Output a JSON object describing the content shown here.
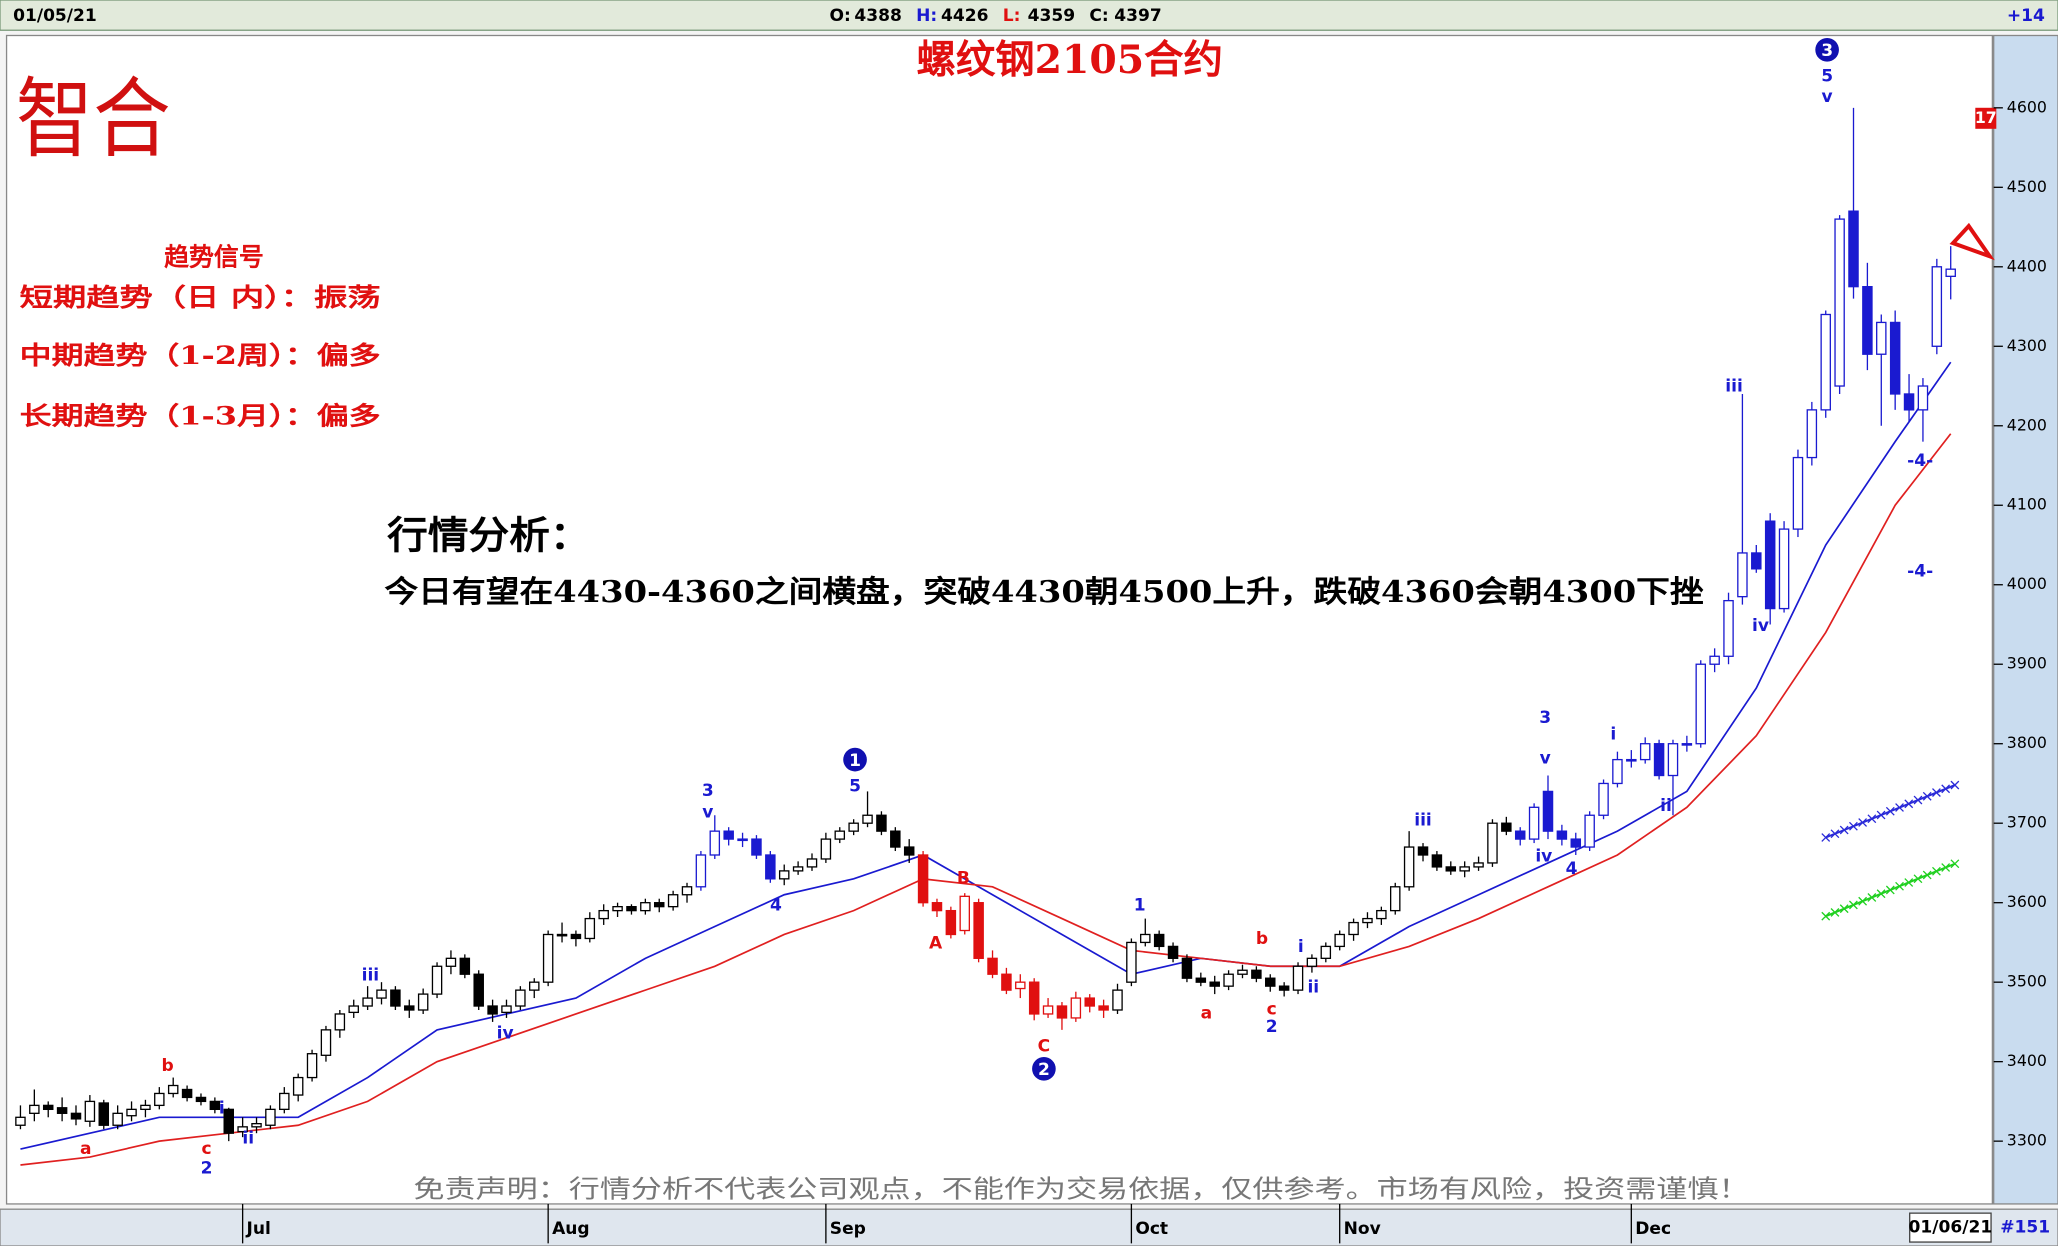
{
  "header": {
    "date": "01/05/21",
    "ohlc": [
      {
        "label": "O:",
        "value": 4388
      },
      {
        "label": "H:",
        "value": 4426
      },
      {
        "label": "L:",
        "value": 4359
      },
      {
        "label": "C:",
        "value": 4397
      }
    ],
    "change": "+14"
  },
  "logo": "智合",
  "trend_signals": {
    "title": "趋势信号",
    "items": [
      "短期趋势（日 内）：振荡",
      "中期趋势（1-2周）：偏多",
      "长期趋势（1-3月）：偏多"
    ]
  },
  "analysis": {
    "title": "行情分析：",
    "text": "今日有望在4430-4360之间横盘，突破4430朝4500上升，跌破4360会朝4300下挫"
  },
  "disclaimer": "免责声明：行情分析不代表公司观点，不能作为交易依据，仅供参考。市场有风险，投资需谨慎！",
  "footer": {
    "date": "01/06/21",
    "count": "#151"
  },
  "chart_data": {
    "type": "candlestick",
    "title": "螺纹钢2105合约",
    "color": "#000000",
    "highlights": [
      {
        "from": 49,
        "to": 54,
        "color": "#1a1ad0"
      },
      {
        "from": 65,
        "to": 78,
        "color": "#e01010"
      },
      {
        "from": 108,
        "to": 139,
        "color": "#1a1ad0"
      }
    ],
    "ohlc": [
      [
        3320,
        3345,
        3315,
        3330
      ],
      [
        3335,
        3365,
        3325,
        3345
      ],
      [
        3345,
        3350,
        3330,
        3340
      ],
      [
        3342,
        3355,
        3325,
        3335
      ],
      [
        3335,
        3345,
        3320,
        3328
      ],
      [
        3325,
        3358,
        3318,
        3350
      ],
      [
        3348,
        3352,
        3315,
        3320
      ],
      [
        3320,
        3345,
        3315,
        3335
      ],
      [
        3332,
        3350,
        3325,
        3340
      ],
      [
        3340,
        3352,
        3330,
        3345
      ],
      [
        3345,
        3368,
        3340,
        3360
      ],
      [
        3360,
        3380,
        3355,
        3370
      ],
      [
        3365,
        3370,
        3350,
        3355
      ],
      [
        3355,
        3360,
        3345,
        3350
      ],
      [
        3350,
        3355,
        3335,
        3340
      ],
      [
        3340,
        3342,
        3300,
        3310
      ],
      [
        3312,
        3330,
        3305,
        3318
      ],
      [
        3318,
        3330,
        3310,
        3322
      ],
      [
        3320,
        3345,
        3315,
        3340
      ],
      [
        3340,
        3368,
        3335,
        3360
      ],
      [
        3358,
        3385,
        3350,
        3380
      ],
      [
        3380,
        3415,
        3375,
        3410
      ],
      [
        3408,
        3445,
        3400,
        3440
      ],
      [
        3440,
        3465,
        3430,
        3460
      ],
      [
        3462,
        3478,
        3455,
        3470
      ],
      [
        3470,
        3495,
        3465,
        3480
      ],
      [
        3480,
        3500,
        3472,
        3490
      ],
      [
        3490,
        3495,
        3465,
        3470
      ],
      [
        3470,
        3478,
        3455,
        3465
      ],
      [
        3465,
        3492,
        3460,
        3485
      ],
      [
        3485,
        3525,
        3480,
        3520
      ],
      [
        3520,
        3540,
        3510,
        3530
      ],
      [
        3530,
        3535,
        3505,
        3510
      ],
      [
        3510,
        3515,
        3465,
        3470
      ],
      [
        3470,
        3478,
        3450,
        3460
      ],
      [
        3462,
        3478,
        3455,
        3470
      ],
      [
        3470,
        3495,
        3465,
        3490
      ],
      [
        3490,
        3505,
        3480,
        3500
      ],
      [
        3500,
        3565,
        3495,
        3560
      ],
      [
        3560,
        3575,
        3550,
        3560
      ],
      [
        3560,
        3565,
        3545,
        3555
      ],
      [
        3555,
        3588,
        3550,
        3580
      ],
      [
        3580,
        3598,
        3572,
        3590
      ],
      [
        3590,
        3600,
        3582,
        3595
      ],
      [
        3595,
        3598,
        3585,
        3590
      ],
      [
        3590,
        3605,
        3585,
        3600
      ],
      [
        3600,
        3605,
        3588,
        3595
      ],
      [
        3595,
        3615,
        3590,
        3610
      ],
      [
        3610,
        3625,
        3600,
        3620
      ],
      [
        3620,
        3665,
        3615,
        3660
      ],
      [
        3660,
        3710,
        3655,
        3690
      ],
      [
        3690,
        3695,
        3672,
        3680
      ],
      [
        3680,
        3688,
        3670,
        3680
      ],
      [
        3680,
        3685,
        3655,
        3660
      ],
      [
        3660,
        3665,
        3625,
        3630
      ],
      [
        3630,
        3648,
        3622,
        3640
      ],
      [
        3640,
        3652,
        3635,
        3645
      ],
      [
        3645,
        3662,
        3640,
        3655
      ],
      [
        3655,
        3688,
        3650,
        3680
      ],
      [
        3680,
        3695,
        3675,
        3690
      ],
      [
        3690,
        3705,
        3685,
        3700
      ],
      [
        3700,
        3740,
        3695,
        3710
      ],
      [
        3710,
        3715,
        3685,
        3690
      ],
      [
        3690,
        3695,
        3665,
        3670
      ],
      [
        3670,
        3680,
        3650,
        3660
      ],
      [
        3660,
        3665,
        3595,
        3600
      ],
      [
        3600,
        3605,
        3582,
        3590
      ],
      [
        3590,
        3595,
        3555,
        3560
      ],
      [
        3565,
        3612,
        3560,
        3608
      ],
      [
        3600,
        3605,
        3525,
        3530
      ],
      [
        3530,
        3540,
        3505,
        3510
      ],
      [
        3510,
        3518,
        3485,
        3490
      ],
      [
        3492,
        3510,
        3480,
        3500
      ],
      [
        3500,
        3505,
        3452,
        3460
      ],
      [
        3460,
        3480,
        3455,
        3470
      ],
      [
        3470,
        3475,
        3440,
        3455
      ],
      [
        3455,
        3488,
        3450,
        3480
      ],
      [
        3480,
        3485,
        3462,
        3470
      ],
      [
        3470,
        3478,
        3455,
        3465
      ],
      [
        3465,
        3498,
        3460,
        3490
      ],
      [
        3500,
        3555,
        3495,
        3550
      ],
      [
        3550,
        3580,
        3545,
        3560
      ],
      [
        3560,
        3565,
        3540,
        3545
      ],
      [
        3545,
        3550,
        3525,
        3530
      ],
      [
        3530,
        3535,
        3500,
        3505
      ],
      [
        3505,
        3512,
        3495,
        3500
      ],
      [
        3500,
        3508,
        3485,
        3495
      ],
      [
        3495,
        3515,
        3490,
        3510
      ],
      [
        3510,
        3522,
        3505,
        3515
      ],
      [
        3515,
        3520,
        3500,
        3505
      ],
      [
        3505,
        3510,
        3488,
        3495
      ],
      [
        3495,
        3500,
        3482,
        3490
      ],
      [
        3490,
        3525,
        3485,
        3520
      ],
      [
        3520,
        3535,
        3512,
        3530
      ],
      [
        3530,
        3550,
        3525,
        3545
      ],
      [
        3545,
        3565,
        3540,
        3560
      ],
      [
        3560,
        3580,
        3552,
        3575
      ],
      [
        3575,
        3588,
        3568,
        3580
      ],
      [
        3580,
        3595,
        3572,
        3590
      ],
      [
        3590,
        3625,
        3585,
        3620
      ],
      [
        3620,
        3690,
        3615,
        3670
      ],
      [
        3670,
        3675,
        3652,
        3660
      ],
      [
        3660,
        3665,
        3640,
        3645
      ],
      [
        3645,
        3652,
        3635,
        3640
      ],
      [
        3640,
        3652,
        3632,
        3645
      ],
      [
        3645,
        3658,
        3640,
        3650
      ],
      [
        3650,
        3705,
        3645,
        3700
      ],
      [
        3700,
        3708,
        3685,
        3690
      ],
      [
        3690,
        3695,
        3672,
        3680
      ],
      [
        3680,
        3725,
        3675,
        3720
      ],
      [
        3740,
        3760,
        3680,
        3690
      ],
      [
        3690,
        3698,
        3672,
        3680
      ],
      [
        3680,
        3688,
        3660,
        3670
      ],
      [
        3670,
        3715,
        3665,
        3710
      ],
      [
        3710,
        3755,
        3705,
        3750
      ],
      [
        3750,
        3790,
        3745,
        3780
      ],
      [
        3780,
        3792,
        3770,
        3780
      ],
      [
        3780,
        3808,
        3775,
        3800
      ],
      [
        3800,
        3805,
        3755,
        3760
      ],
      [
        3760,
        3805,
        3710,
        3800
      ],
      [
        3800,
        3810,
        3790,
        3800
      ],
      [
        3800,
        3905,
        3795,
        3900
      ],
      [
        3900,
        3920,
        3890,
        3910
      ],
      [
        3910,
        3990,
        3900,
        3980
      ],
      [
        3985,
        4240,
        3975,
        4040
      ],
      [
        4040,
        4050,
        4015,
        4020
      ],
      [
        4080,
        4090,
        3950,
        3970
      ],
      [
        3970,
        4080,
        3965,
        4070
      ],
      [
        4070,
        4170,
        4060,
        4160
      ],
      [
        4160,
        4230,
        4150,
        4220
      ],
      [
        4220,
        4345,
        4210,
        4340
      ],
      [
        4250,
        4465,
        4240,
        4460
      ],
      [
        4470,
        4600,
        4360,
        4375
      ],
      [
        4375,
        4405,
        4270,
        4290
      ],
      [
        4290,
        4340,
        4200,
        4330
      ],
      [
        4330,
        4345,
        4220,
        4240
      ],
      [
        4240,
        4265,
        4205,
        4220
      ],
      [
        4220,
        4260,
        4180,
        4250
      ],
      [
        4300,
        4410,
        4290,
        4400
      ],
      [
        4388,
        4426,
        4359,
        4397
      ]
    ],
    "x": [
      0,
      5,
      10,
      15,
      20,
      25,
      30,
      35,
      40,
      45,
      50,
      55,
      60,
      65,
      70,
      75,
      80,
      85,
      90,
      95,
      100,
      105,
      110,
      115,
      120,
      125,
      130,
      135,
      139
    ],
    "series": [
      {
        "color": "#1a1ad0",
        "values": [
          3290,
          3310,
          3330,
          3330,
          3330,
          3380,
          3440,
          3460,
          3480,
          3530,
          3570,
          3610,
          3630,
          3660,
          3610,
          3560,
          3510,
          3530,
          3520,
          3520,
          3570,
          3610,
          3650,
          3690,
          3740,
          3870,
          4050,
          4180,
          4280
        ]
      },
      {
        "color": "#e02020",
        "values": [
          3270,
          3280,
          3300,
          3310,
          3320,
          3350,
          3400,
          3430,
          3460,
          3490,
          3520,
          3560,
          3590,
          3630,
          3620,
          3580,
          3540,
          3530,
          3520,
          3520,
          3545,
          3580,
          3620,
          3660,
          3720,
          3810,
          3940,
          4100,
          4190
        ]
      }
    ],
    "projections": [
      {
        "x": [
          130,
          139.3
        ],
        "values": [
          3682,
          3748
        ],
        "color": "#2a2ad8"
      },
      {
        "x": [
          130,
          139.3
        ],
        "values": [
          3583,
          3649
        ],
        "color": "#20d020"
      }
    ],
    "annotations": [
      {
        "x": 4.7,
        "y": 3292,
        "text": "a",
        "color": "#e01010"
      },
      {
        "x": 10.6,
        "y": 3396,
        "text": "b",
        "color": "#e01010"
      },
      {
        "x": 13.4,
        "y": 3292,
        "text": "c",
        "color": "#e01010"
      },
      {
        "x": 13.4,
        "y": 3267,
        "text": "2",
        "color": "#1a1ad0"
      },
      {
        "x": 14.5,
        "y": 3343,
        "text": "i",
        "color": "#1a1ad0"
      },
      {
        "x": 16.4,
        "y": 3305,
        "text": "ii",
        "color": "#1a1ad0"
      },
      {
        "x": 25.2,
        "y": 3510,
        "text": "iii",
        "color": "#1a1ad0"
      },
      {
        "x": 34.9,
        "y": 3437,
        "text": "iv",
        "color": "#1a1ad0"
      },
      {
        "x": 49.5,
        "y": 3742,
        "text": "3",
        "color": "#1a1ad0"
      },
      {
        "x": 49.5,
        "y": 3715,
        "text": "v",
        "color": "#1a1ad0"
      },
      {
        "x": 54.4,
        "y": 3598,
        "text": "4",
        "color": "#1a1ad0"
      },
      {
        "x": 60.1,
        "y": 3780,
        "text": "1",
        "color": "#1010b0",
        "circle": true
      },
      {
        "x": 60.1,
        "y": 3748,
        "text": "5",
        "color": "#1a1ad0"
      },
      {
        "x": 65.9,
        "y": 3550,
        "text": "A",
        "color": "#e01010"
      },
      {
        "x": 67.9,
        "y": 3632,
        "text": "B",
        "color": "#e01010"
      },
      {
        "x": 73.7,
        "y": 3421,
        "text": "C",
        "color": "#e01010"
      },
      {
        "x": 73.7,
        "y": 3391,
        "text": "2",
        "color": "#1010b0",
        "circle": true
      },
      {
        "x": 80.6,
        "y": 3598,
        "text": "1",
        "color": "#1a1ad0"
      },
      {
        "x": 85.4,
        "y": 3462,
        "text": "a",
        "color": "#e01010"
      },
      {
        "x": 89.4,
        "y": 3556,
        "text": "b",
        "color": "#e01010"
      },
      {
        "x": 90.1,
        "y": 3467,
        "text": "c",
        "color": "#e01010"
      },
      {
        "x": 90.1,
        "y": 3445,
        "text": "2",
        "color": "#1a1ad0"
      },
      {
        "x": 92.2,
        "y": 3546,
        "text": "i",
        "color": "#1a1ad0"
      },
      {
        "x": 93.1,
        "y": 3495,
        "text": "ii",
        "color": "#1a1ad0"
      },
      {
        "x": 101,
        "y": 3705,
        "text": "iii",
        "color": "#1a1ad0"
      },
      {
        "x": 109.8,
        "y": 3834,
        "text": "3",
        "color": "#1a1ad0"
      },
      {
        "x": 109.8,
        "y": 3783,
        "text": "v",
        "color": "#1a1ad0"
      },
      {
        "x": 109.7,
        "y": 3660,
        "text": "iv",
        "color": "#1a1ad0"
      },
      {
        "x": 111.7,
        "y": 3644,
        "text": "4",
        "color": "#1a1ad0"
      },
      {
        "x": 114.7,
        "y": 3813,
        "text": "i",
        "color": "#1a1ad0"
      },
      {
        "x": 118.5,
        "y": 3723,
        "text": "ii",
        "color": "#1a1ad0"
      },
      {
        "x": 123.4,
        "y": 4251,
        "text": "iii",
        "color": "#1a1ad0"
      },
      {
        "x": 125.3,
        "y": 3950,
        "text": "iv",
        "color": "#1a1ad0"
      },
      {
        "x": 130.1,
        "y": 4673,
        "text": "3",
        "color": "#1010b0",
        "circle": true
      },
      {
        "x": 130.1,
        "y": 4641,
        "text": "5",
        "color": "#1a1ad0"
      },
      {
        "x": 130.1,
        "y": 4615,
        "text": "v",
        "color": "#1a1ad0"
      },
      {
        "x": 136.8,
        "y": 4157,
        "text": "-4-",
        "color": "#1a1ad0"
      },
      {
        "x": 136.8,
        "y": 4018,
        "text": "-4-",
        "color": "#1a1ad0"
      }
    ],
    "ylim": [
      3221,
      4691
    ],
    "yticks": [
      3300,
      3400,
      3500,
      3600,
      3700,
      3800,
      3900,
      4000,
      4100,
      4200,
      4300,
      4400,
      4500,
      4600
    ],
    "xlim": [
      -1,
      142
    ],
    "xticks": [
      {
        "value": 16,
        "label": "Jul"
      },
      {
        "value": 38,
        "label": "Aug"
      },
      {
        "value": 58,
        "label": "Sep"
      },
      {
        "value": 80,
        "label": "Oct"
      },
      {
        "value": 95,
        "label": "Nov"
      },
      {
        "value": 116,
        "label": "Dec"
      }
    ],
    "axis_tag": 17
  }
}
